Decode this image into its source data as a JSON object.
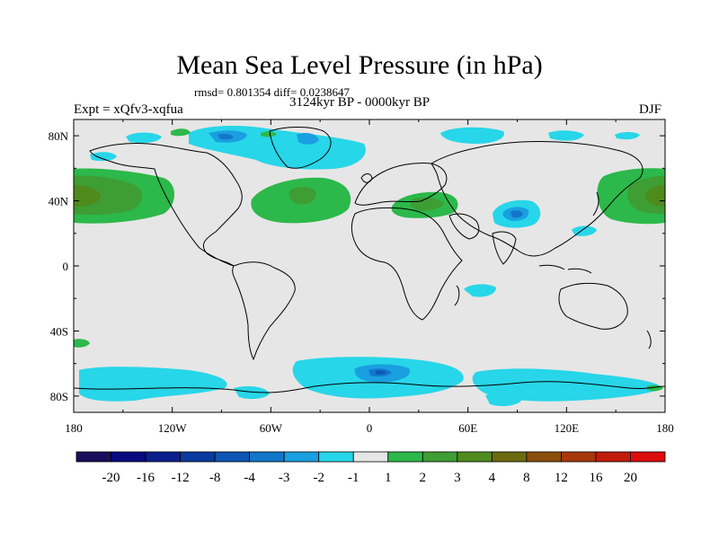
{
  "header": {
    "title": "Mean Sea Level Pressure (in hPa)",
    "stats": "rmsd= 0.801354 diff= 0.0238647",
    "period": "3124kyr BP - 0000kyr BP",
    "expt": "Expt = xQfv3-xqfua",
    "season": "DJF"
  },
  "chart_data": {
    "type": "heatmap",
    "title": "Mean Sea Level Pressure (in hPa)",
    "subtitle": "3124kyr BP - 0000kyr BP",
    "variable": "Mean Sea Level Pressure difference",
    "units": "hPa",
    "projection": "cylindrical equidistant",
    "xlim": [
      -180,
      180
    ],
    "ylim": [
      -90,
      90
    ],
    "x_ticks": [
      -180,
      -120,
      -60,
      0,
      60,
      120,
      180
    ],
    "x_tick_labels": [
      "180",
      "120W",
      "60W",
      "0",
      "60E",
      "120E",
      "180"
    ],
    "y_ticks": [
      80,
      40,
      0,
      -40,
      -80
    ],
    "y_tick_labels": [
      "80N",
      "40N",
      "0",
      "40S",
      "80S"
    ],
    "levels": [
      -20,
      -16,
      -12,
      -8,
      -4,
      -3,
      -2,
      -1,
      1,
      2,
      3,
      4,
      8,
      12,
      16,
      20
    ],
    "level_labels": [
      "-20",
      "-16",
      "-12",
      "-8",
      "-4",
      "-3",
      "-2",
      "-1",
      "1",
      "2",
      "3",
      "4",
      "8",
      "12",
      "16",
      "20"
    ],
    "colors": [
      "#1a0d5c",
      "#0a0a80",
      "#0a1e8c",
      "#0a3a9e",
      "#0e55b4",
      "#1276c9",
      "#1a9fe0",
      "#27d6e8",
      "#e6e6e6",
      "#2cb84a",
      "#3e9d33",
      "#4f8a1d",
      "#6b6a0f",
      "#8a4e0c",
      "#a6380c",
      "#c21c0c",
      "#dc0d0d"
    ],
    "features": [
      {
        "name": "North Pacific positive anomaly",
        "lon": -180,
        "lat": 40,
        "value": 3
      },
      {
        "name": "North Atlantic positive anomaly",
        "lon": -35,
        "lat": 35,
        "value": 3
      },
      {
        "name": "Mediterranean positive anomaly",
        "lon": 25,
        "lat": 40,
        "value": 2
      },
      {
        "name": "Tibetan Plateau negative anomaly",
        "lon": 95,
        "lat": 32,
        "value": -3
      },
      {
        "name": "Greenland negative anomaly",
        "lon": -40,
        "lat": 75,
        "value": -3
      },
      {
        "name": "Southern Ocean negative anomaly",
        "lon": 15,
        "lat": -68,
        "value": -3
      }
    ]
  }
}
